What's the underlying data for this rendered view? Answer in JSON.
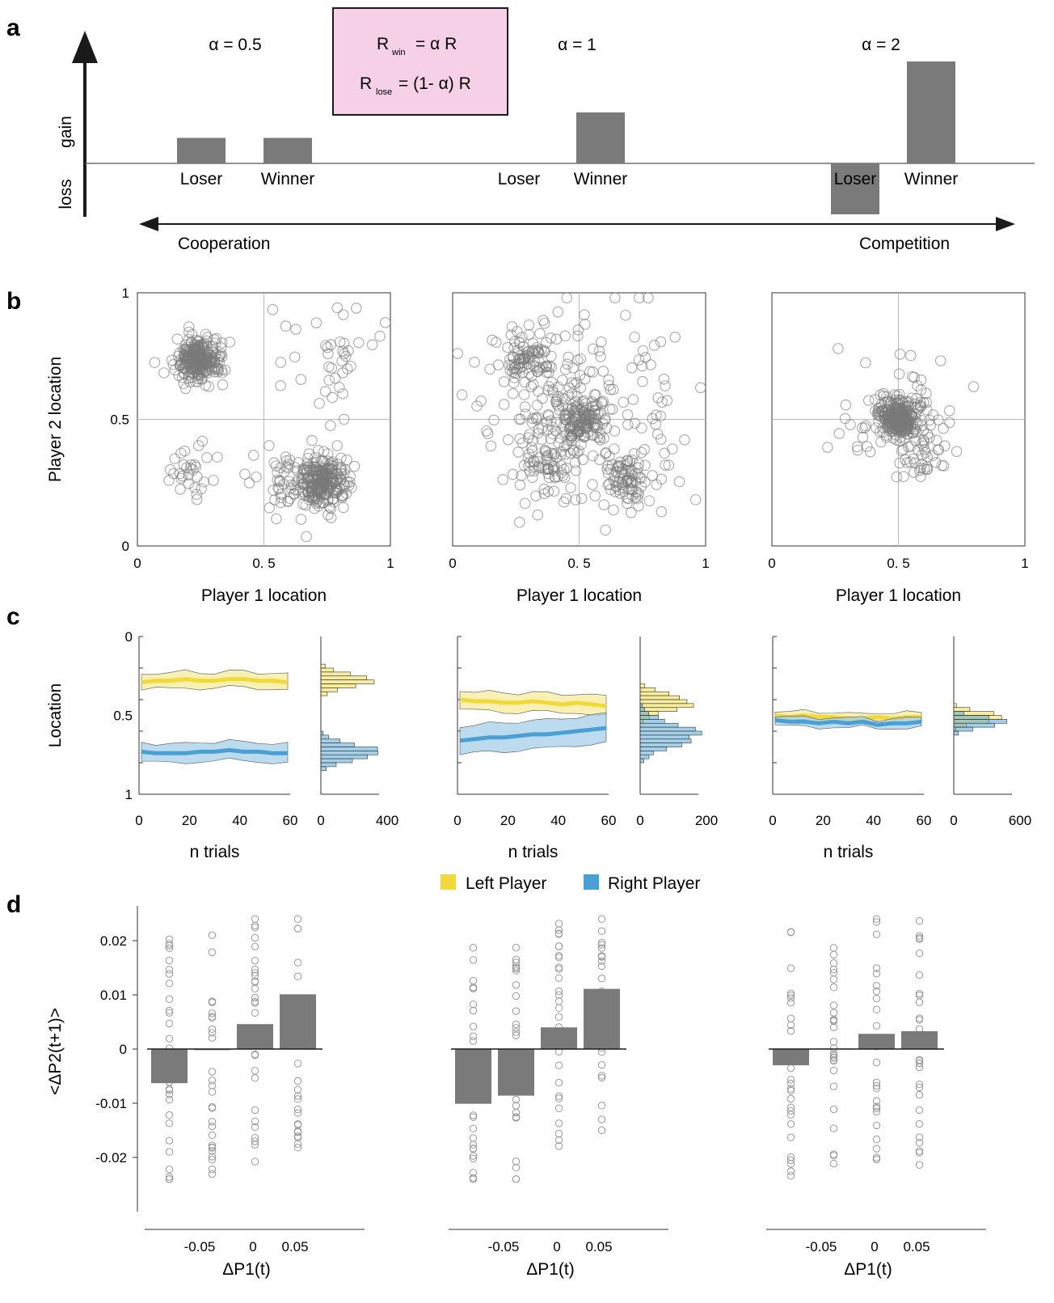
{
  "panel_labels": {
    "a": "a",
    "b": "b",
    "c": "c",
    "d": "d"
  },
  "panel_a": {
    "y_gain": "gain",
    "y_loss": "loss",
    "formula": {
      "r1_main": "R",
      "r1_sub": "win",
      "r1_rest": "= α  R",
      "r2_main": "R",
      "r2_sub": "lose",
      "r2_rest": "= (1- α)  R"
    },
    "conditions": [
      {
        "alpha": "α = 0.5",
        "loser": "Loser",
        "winner": "Winner",
        "loser_value": 0.5,
        "winner_value": 0.5
      },
      {
        "alpha": "α = 1",
        "loser": "Loser",
        "winner": "Winner",
        "loser_value": 0,
        "winner_value": 1
      },
      {
        "alpha": "α = 2",
        "loser": "Loser",
        "winner": "Winner",
        "loser_value": -1,
        "winner_value": 2
      }
    ],
    "left_arrow_label": "Cooperation",
    "right_arrow_label": "Competition",
    "bar_color": "#7a7a7a",
    "formula_bg": "#f5d0e6"
  },
  "chart_data": [
    {
      "type": "scatter",
      "panel": "b",
      "xlabel": "Player 1 location",
      "ylabel": "Player 2 location",
      "xlim": [
        0,
        1
      ],
      "ylim": [
        0,
        1
      ],
      "x_ticks": [
        "0",
        "0. 5",
        "1"
      ],
      "y_ticks": [
        "0",
        "0.5",
        "1"
      ],
      "grid_center": 0.5,
      "subplots": [
        {
          "clusters": [
            {
              "cx": 0.24,
              "cy": 0.73,
              "n": 260,
              "sd": 0.045
            },
            {
              "cx": 0.74,
              "cy": 0.25,
              "n": 240,
              "sd": 0.05
            },
            {
              "cx": 0.6,
              "cy": 0.24,
              "n": 60,
              "sd": 0.08
            },
            {
              "cx": 0.22,
              "cy": 0.27,
              "n": 30,
              "sd": 0.06
            },
            {
              "cx": 0.74,
              "cy": 0.75,
              "n": 40,
              "sd": 0.1
            }
          ]
        },
        {
          "clusters": [
            {
              "cx": 0.5,
              "cy": 0.5,
              "n": 120,
              "sd": 0.05
            },
            {
              "cx": 0.3,
              "cy": 0.74,
              "n": 80,
              "sd": 0.05
            },
            {
              "cx": 0.7,
              "cy": 0.27,
              "n": 80,
              "sd": 0.05
            },
            {
              "cx": 0.35,
              "cy": 0.33,
              "n": 50,
              "sd": 0.05
            },
            {
              "cx": 0.5,
              "cy": 0.5,
              "n": 220,
              "sd": 0.2
            }
          ]
        },
        {
          "clusters": [
            {
              "cx": 0.5,
              "cy": 0.5,
              "n": 260,
              "sd": 0.035
            },
            {
              "cx": 0.5,
              "cy": 0.5,
              "n": 90,
              "sd": 0.12
            },
            {
              "cx": 0.6,
              "cy": 0.35,
              "n": 30,
              "sd": 0.05
            }
          ]
        }
      ],
      "marker_color": "#7a7a7a"
    },
    {
      "type": "line",
      "panel": "c",
      "xlabel": "n trials",
      "ylabel": "Location",
      "xlim": [
        0,
        60
      ],
      "ylim": [
        0,
        1
      ],
      "x_ticks": [
        "0",
        "20",
        "40",
        "60"
      ],
      "y_ticks": [
        "0",
        "0.5",
        "1"
      ],
      "legend": {
        "left": "Left Player",
        "right": "Right Player"
      },
      "colors": {
        "left": "#f2d93b",
        "left_band": "#f7eb99",
        "right": "#4a9fd4",
        "right_band": "#a6cfea"
      },
      "subplots": [
        {
          "left_mean": [
            0.29,
            0.28,
            0.28,
            0.27,
            0.28,
            0.28,
            0.27,
            0.27,
            0.28,
            0.28,
            0.29
          ],
          "left_sd": 0.05,
          "right_mean": [
            0.73,
            0.74,
            0.74,
            0.74,
            0.73,
            0.73,
            0.72,
            0.73,
            0.73,
            0.74,
            0.74
          ],
          "right_sd": 0.06,
          "hist_xmax": 400,
          "hist_ticks": [
            "0",
            "400"
          ]
        },
        {
          "left_mean": [
            0.4,
            0.41,
            0.41,
            0.42,
            0.42,
            0.41,
            0.42,
            0.43,
            0.42,
            0.43,
            0.44
          ],
          "left_sd": 0.06,
          "right_mean": [
            0.66,
            0.65,
            0.64,
            0.64,
            0.63,
            0.62,
            0.62,
            0.61,
            0.6,
            0.59,
            0.58
          ],
          "right_sd": 0.09,
          "hist_xmax": 200,
          "hist_ticks": [
            "0",
            "200"
          ]
        },
        {
          "left_mean": [
            0.5,
            0.51,
            0.5,
            0.51,
            0.51,
            0.52,
            0.52,
            0.51,
            0.52,
            0.51,
            0.51
          ],
          "left_sd": 0.03,
          "right_mean": [
            0.53,
            0.54,
            0.54,
            0.55,
            0.54,
            0.55,
            0.54,
            0.56,
            0.55,
            0.55,
            0.54
          ],
          "right_sd": 0.03,
          "hist_xmax": 600,
          "hist_ticks": [
            "0",
            "600"
          ]
        }
      ]
    },
    {
      "type": "bar",
      "panel": "d",
      "xlabel": "ΔP1(t)",
      "ylabel": "<ΔP2(t+1)>",
      "ylim": [
        -0.025,
        0.025
      ],
      "x_ticks": [
        "-0.05",
        "0",
        "0.05"
      ],
      "y_ticks": [
        "-0.02",
        "-0.01",
        "0",
        "0.01",
        "0.02"
      ],
      "subplots": [
        {
          "values": [
            -0.0063,
            -0.0002,
            0.0046,
            0.0101
          ]
        },
        {
          "values": [
            -0.0101,
            -0.0086,
            0.004,
            0.0111
          ]
        },
        {
          "values": [
            -0.003,
            0.0001,
            0.0028,
            0.0033
          ]
        }
      ],
      "bar_color": "#7a7a7a"
    }
  ]
}
